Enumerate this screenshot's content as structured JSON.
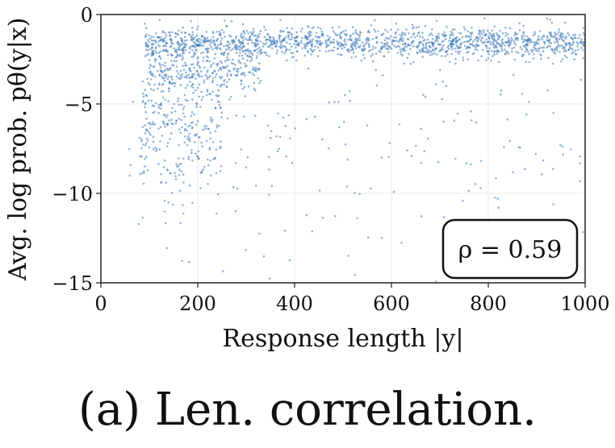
{
  "caption": "(a) Len. correlation.",
  "chart_data": {
    "type": "scatter",
    "title": "",
    "xlabel": "Response length |y|",
    "ylabel": "Avg. log prob. pθ(y|x)",
    "xlim": [
      0,
      1000
    ],
    "ylim": [
      -15,
      0
    ],
    "xticks": [
      "0",
      "200",
      "400",
      "600",
      "800",
      "1000"
    ],
    "yticks": [
      "0",
      "−5",
      "−10",
      "−15"
    ],
    "grid": true,
    "annotation": "ρ = 0.59",
    "annotation_position": "bottom-right",
    "point_color": "#3a78b6",
    "clusters": [
      {
        "x_range": [
          90,
          1000
        ],
        "y_center": -1.6,
        "y_spread": 0.8,
        "count": 1400
      },
      {
        "x_range": [
          100,
          330
        ],
        "y_center": -3.0,
        "y_spread": 1.5,
        "count": 320
      },
      {
        "x_range": [
          80,
          250
        ],
        "y_center": -6.5,
        "y_spread": 4.0,
        "count": 260
      },
      {
        "x_range": [
          50,
          1000
        ],
        "y_center": -7.5,
        "y_spread": 7.0,
        "count": 230
      }
    ]
  }
}
